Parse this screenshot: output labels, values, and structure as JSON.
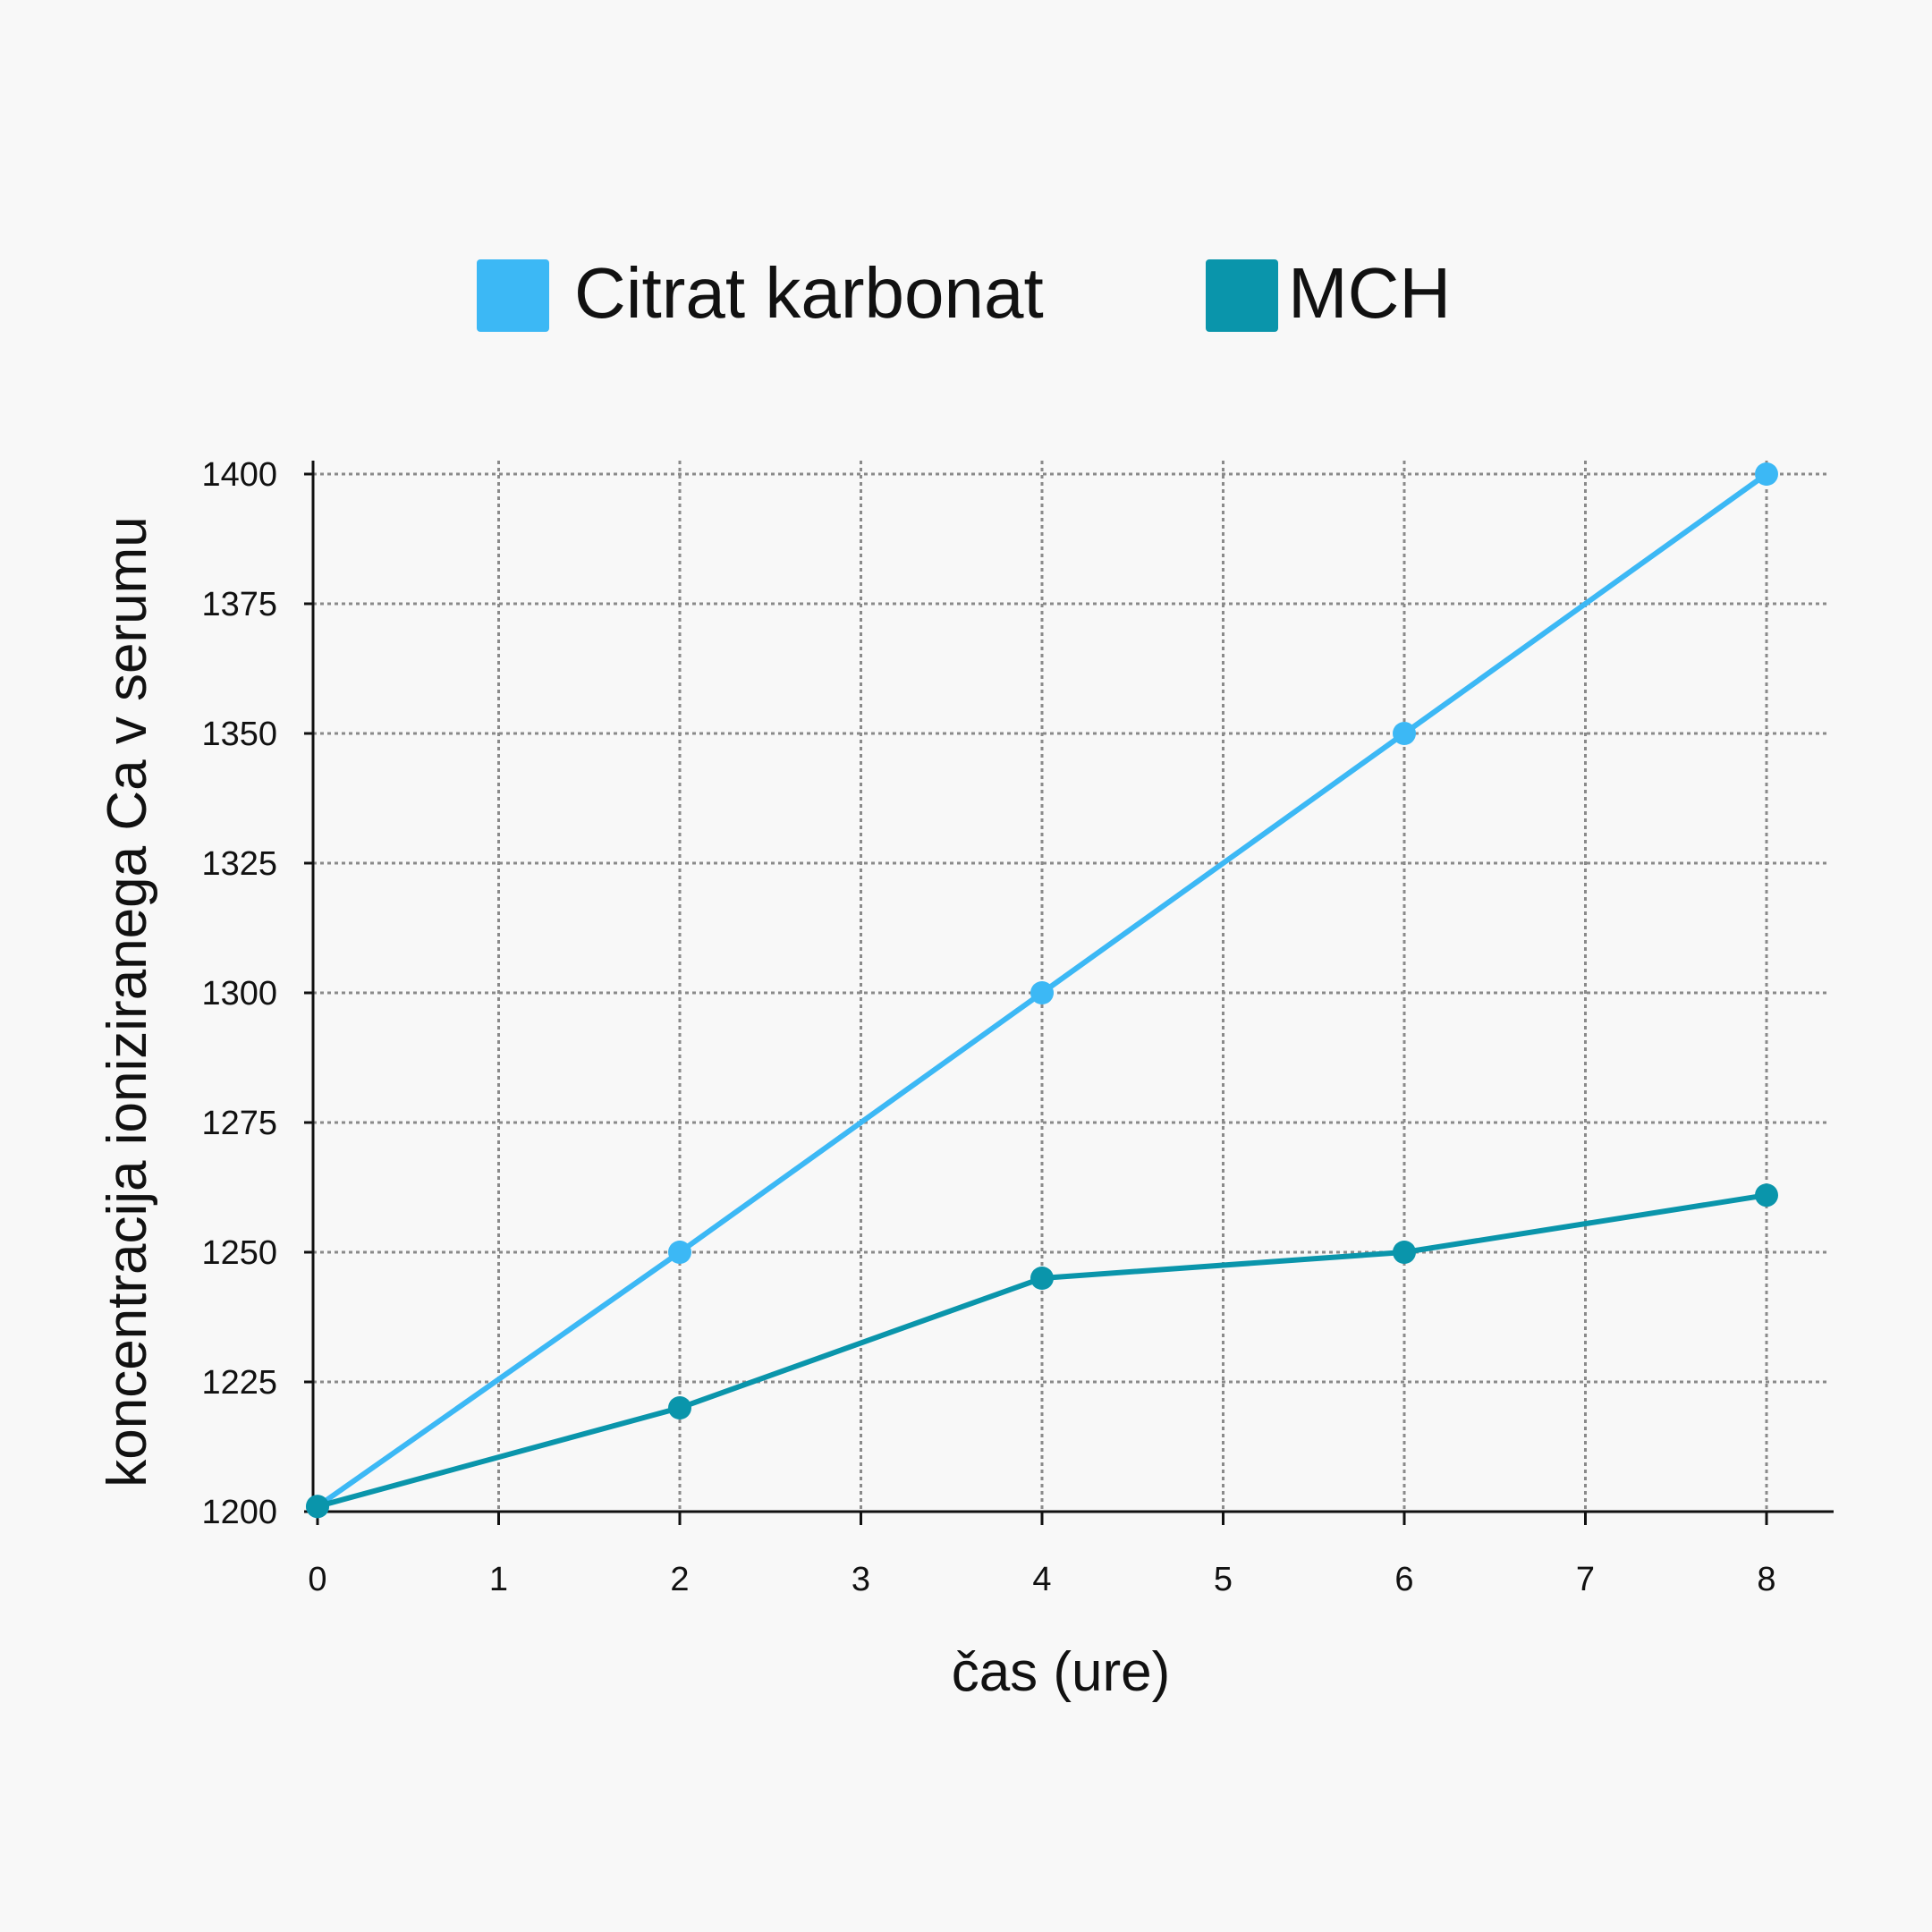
{
  "chart_data": {
    "type": "line",
    "title": "",
    "xlabel": "čas (ure)",
    "ylabel": "koncentracija ioniziranega Ca v serumu",
    "xlim": [
      0,
      8
    ],
    "ylim": [
      1200,
      1400
    ],
    "xticks": [
      0,
      1,
      2,
      3,
      4,
      5,
      6,
      7,
      8
    ],
    "yticks": [
      1200,
      1225,
      1250,
      1275,
      1300,
      1325,
      1350,
      1375,
      1400
    ],
    "grid": true,
    "legend_position": "top",
    "series": [
      {
        "name": "Citrat karbonat",
        "color": "#3cb8f5",
        "x": [
          0,
          2,
          4,
          6,
          8
        ],
        "y": [
          1201,
          1250,
          1300,
          1350,
          1400
        ]
      },
      {
        "name": "MCH",
        "color": "#0a95ab",
        "x": [
          0,
          2,
          4,
          6,
          8
        ],
        "y": [
          1201,
          1220,
          1245,
          1250,
          1261
        ]
      }
    ]
  }
}
